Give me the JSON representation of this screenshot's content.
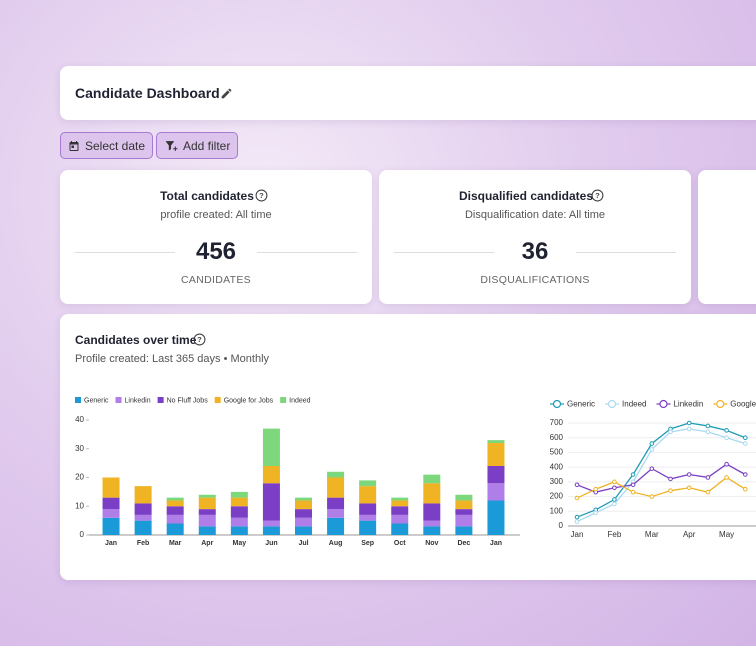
{
  "header": {
    "title": "Candidate Dashboard"
  },
  "toolbar": {
    "buttons": [
      "Select date",
      "Add filter"
    ]
  },
  "kpis": [
    {
      "title": "Total candidates",
      "subtitle": "profile created: All time",
      "value": 456,
      "unit": "CANDIDATES"
    },
    {
      "title": "Disqualified candidates",
      "subtitle": "Disqualification date: All time",
      "value": 36,
      "unit": "DISQUALIFICATIONS"
    }
  ],
  "panel": {
    "title": "Candidates over time",
    "subtitle": "Profile created: Last 365 days • Monthly"
  },
  "chart_data": [
    {
      "type": "bar",
      "stacked": true,
      "legend": "top-left",
      "categories": [
        "Jan",
        "Feb",
        "Mar",
        "Apr",
        "May",
        "Jun",
        "Jul",
        "Aug",
        "Sep",
        "Oct",
        "Nov",
        "Dec",
        "Jan"
      ],
      "series": [
        {
          "name": "Generic",
          "color": "#1a9ad6",
          "values": [
            6,
            5,
            4,
            3,
            3,
            3,
            3,
            6,
            5,
            4,
            3,
            3,
            12
          ]
        },
        {
          "name": "Linkedin",
          "color": "#b07ee8",
          "values": [
            3,
            2,
            3,
            4,
            3,
            2,
            3,
            3,
            2,
            3,
            2,
            4,
            6
          ]
        },
        {
          "name": "No Fluff Jobs",
          "color": "#7a3fc4",
          "values": [
            4,
            4,
            3,
            2,
            4,
            13,
            3,
            4,
            4,
            3,
            6,
            2,
            6
          ]
        },
        {
          "name": "Google for Jobs",
          "color": "#f0b323",
          "values": [
            7,
            6,
            2,
            4,
            3,
            6,
            3,
            7,
            6,
            2,
            7,
            3,
            8
          ]
        },
        {
          "name": "Indeed",
          "color": "#7dd87d",
          "values": [
            0,
            0,
            1,
            1,
            2,
            13,
            1,
            2,
            2,
            1,
            3,
            2,
            1
          ]
        }
      ],
      "ylim": [
        0,
        40
      ],
      "yticks": [
        0,
        10,
        20,
        30,
        40
      ]
    },
    {
      "type": "line",
      "legend": "top-left",
      "grid": true,
      "categories": [
        "Jan",
        null,
        "Feb",
        null,
        "Mar",
        null,
        "Apr",
        null,
        "May",
        null
      ],
      "series": [
        {
          "name": "Generic",
          "color": "#1f9bb3",
          "values": [
            60,
            110,
            180,
            350,
            560,
            660,
            700,
            680,
            650,
            600
          ]
        },
        {
          "name": "Indeed",
          "color": "#a9d9ef",
          "values": [
            30,
            90,
            150,
            300,
            520,
            640,
            660,
            640,
            600,
            560
          ]
        },
        {
          "name": "Linkedin",
          "color": "#7a3fc4",
          "values": [
            280,
            230,
            260,
            280,
            390,
            320,
            350,
            330,
            420,
            350
          ]
        },
        {
          "name": "Google for Jobs",
          "color": "#f0b323",
          "values": [
            190,
            250,
            300,
            230,
            200,
            240,
            260,
            230,
            330,
            250
          ]
        }
      ],
      "ylim": [
        0,
        700
      ],
      "yticks": [
        0,
        100,
        200,
        300,
        400,
        500,
        600,
        700
      ]
    }
  ]
}
